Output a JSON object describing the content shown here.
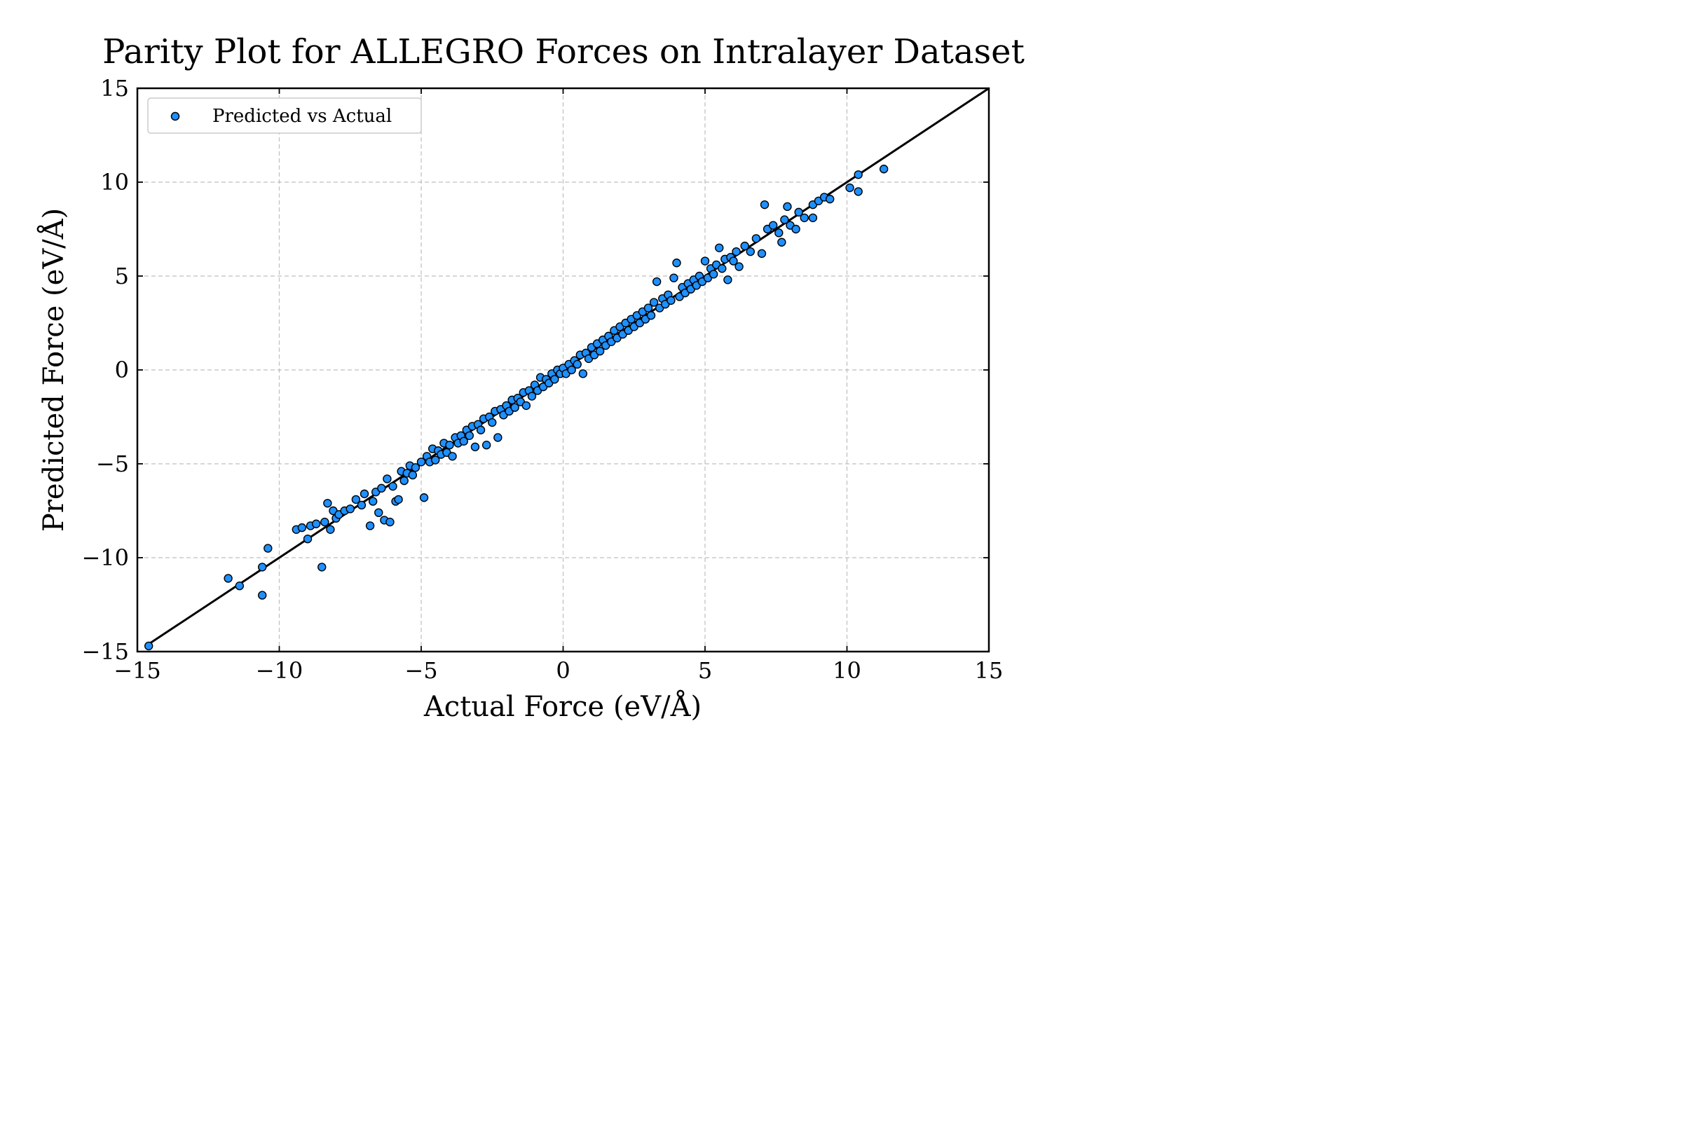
{
  "chart_data": {
    "type": "scatter",
    "title": "Parity Plot for ALLEGRO Forces on Intralayer Dataset",
    "xlabel": "Actual Force (eV/Å)",
    "ylabel": "Predicted Force (eV/Å)",
    "xlim": [
      -15,
      15
    ],
    "ylim": [
      -15,
      15
    ],
    "xticks": [
      -15,
      -10,
      -5,
      0,
      5,
      10,
      15
    ],
    "yticks": [
      -15,
      -10,
      -5,
      0,
      5,
      10,
      15
    ],
    "xtick_labels": [
      "−15",
      "−10",
      "−5",
      "0",
      "5",
      "10",
      "15"
    ],
    "ytick_labels": [
      "−15",
      "−10",
      "−5",
      "0",
      "5",
      "10",
      "15"
    ],
    "grid": true,
    "legend": {
      "placement": "upper-left",
      "entries": [
        "Predicted vs Actual"
      ]
    },
    "reference_line": {
      "x": [
        -14.6,
        15
      ],
      "y": [
        -14.6,
        15
      ],
      "color": "#000000"
    },
    "marker_color": "#1e90ff",
    "marker_edge_color": "#000000",
    "series": [
      {
        "name": "Predicted vs Actual",
        "points": [
          [
            -14.6,
            -14.7
          ],
          [
            -11.8,
            -11.1
          ],
          [
            -11.4,
            -11.5
          ],
          [
            -10.6,
            -10.5
          ],
          [
            -10.6,
            -12.0
          ],
          [
            -10.4,
            -9.5
          ],
          [
            -9.4,
            -8.5
          ],
          [
            -9.2,
            -8.4
          ],
          [
            -9.0,
            -9.0
          ],
          [
            -8.9,
            -8.3
          ],
          [
            -8.7,
            -8.2
          ],
          [
            -8.5,
            -10.5
          ],
          [
            -8.4,
            -8.1
          ],
          [
            -8.3,
            -7.1
          ],
          [
            -8.2,
            -8.5
          ],
          [
            -8.1,
            -7.5
          ],
          [
            -8.0,
            -7.9
          ],
          [
            -7.9,
            -7.7
          ],
          [
            -7.7,
            -7.5
          ],
          [
            -7.5,
            -7.4
          ],
          [
            -7.3,
            -6.9
          ],
          [
            -7.1,
            -7.2
          ],
          [
            -7.0,
            -6.6
          ],
          [
            -6.8,
            -8.3
          ],
          [
            -6.7,
            -7.0
          ],
          [
            -6.6,
            -6.5
          ],
          [
            -6.5,
            -7.6
          ],
          [
            -6.4,
            -6.3
          ],
          [
            -6.3,
            -8.0
          ],
          [
            -6.2,
            -5.8
          ],
          [
            -6.1,
            -8.1
          ],
          [
            -6.0,
            -6.2
          ],
          [
            -5.9,
            -7.0
          ],
          [
            -5.8,
            -6.9
          ],
          [
            -5.7,
            -5.4
          ],
          [
            -5.6,
            -5.9
          ],
          [
            -5.5,
            -5.5
          ],
          [
            -5.4,
            -5.1
          ],
          [
            -5.3,
            -5.6
          ],
          [
            -5.2,
            -5.2
          ],
          [
            -5.0,
            -4.9
          ],
          [
            -4.9,
            -6.8
          ],
          [
            -4.8,
            -4.6
          ],
          [
            -4.7,
            -4.9
          ],
          [
            -4.6,
            -4.2
          ],
          [
            -4.5,
            -4.8
          ],
          [
            -4.4,
            -4.3
          ],
          [
            -4.3,
            -4.5
          ],
          [
            -4.2,
            -3.9
          ],
          [
            -4.1,
            -4.4
          ],
          [
            -4.0,
            -4.0
          ],
          [
            -3.9,
            -4.6
          ],
          [
            -3.8,
            -3.6
          ],
          [
            -3.7,
            -3.9
          ],
          [
            -3.6,
            -3.5
          ],
          [
            -3.5,
            -3.8
          ],
          [
            -3.4,
            -3.2
          ],
          [
            -3.3,
            -3.5
          ],
          [
            -3.2,
            -3.0
          ],
          [
            -3.1,
            -4.1
          ],
          [
            -3.0,
            -2.9
          ],
          [
            -2.9,
            -3.2
          ],
          [
            -2.8,
            -2.6
          ],
          [
            -2.7,
            -4.0
          ],
          [
            -2.6,
            -2.5
          ],
          [
            -2.5,
            -2.8
          ],
          [
            -2.4,
            -2.2
          ],
          [
            -2.3,
            -3.6
          ],
          [
            -2.2,
            -2.1
          ],
          [
            -2.1,
            -2.4
          ],
          [
            -2.0,
            -1.9
          ],
          [
            -1.9,
            -2.2
          ],
          [
            -1.8,
            -1.6
          ],
          [
            -1.7,
            -2.0
          ],
          [
            -1.6,
            -1.5
          ],
          [
            -1.5,
            -1.7
          ],
          [
            -1.4,
            -1.2
          ],
          [
            -1.3,
            -1.9
          ],
          [
            -1.2,
            -1.1
          ],
          [
            -1.1,
            -1.4
          ],
          [
            -1.0,
            -0.8
          ],
          [
            -0.9,
            -1.1
          ],
          [
            -0.8,
            -0.4
          ],
          [
            -0.7,
            -0.9
          ],
          [
            -0.6,
            -0.5
          ],
          [
            -0.5,
            -0.7
          ],
          [
            -0.4,
            -0.2
          ],
          [
            -0.3,
            -0.5
          ],
          [
            -0.2,
            0.0
          ],
          [
            -0.1,
            -0.2
          ],
          [
            0.0,
            0.1
          ],
          [
            0.1,
            -0.2
          ],
          [
            0.2,
            0.3
          ],
          [
            0.3,
            0.0
          ],
          [
            0.4,
            0.5
          ],
          [
            0.5,
            0.3
          ],
          [
            0.6,
            0.8
          ],
          [
            0.7,
            -0.2
          ],
          [
            0.8,
            0.9
          ],
          [
            0.9,
            0.6
          ],
          [
            1.0,
            1.2
          ],
          [
            1.1,
            0.8
          ],
          [
            1.2,
            1.4
          ],
          [
            1.3,
            1.0
          ],
          [
            1.4,
            1.6
          ],
          [
            1.5,
            1.3
          ],
          [
            1.6,
            1.8
          ],
          [
            1.7,
            1.5
          ],
          [
            1.8,
            2.1
          ],
          [
            1.9,
            1.7
          ],
          [
            2.0,
            2.3
          ],
          [
            2.1,
            1.9
          ],
          [
            2.2,
            2.5
          ],
          [
            2.3,
            2.1
          ],
          [
            2.4,
            2.7
          ],
          [
            2.5,
            2.3
          ],
          [
            2.6,
            2.9
          ],
          [
            2.7,
            2.5
          ],
          [
            2.8,
            3.1
          ],
          [
            2.9,
            2.7
          ],
          [
            3.0,
            3.3
          ],
          [
            3.1,
            2.9
          ],
          [
            3.2,
            3.6
          ],
          [
            3.3,
            4.7
          ],
          [
            3.4,
            3.3
          ],
          [
            3.5,
            3.8
          ],
          [
            3.6,
            3.5
          ],
          [
            3.7,
            4.0
          ],
          [
            3.8,
            3.7
          ],
          [
            3.9,
            4.9
          ],
          [
            4.0,
            5.7
          ],
          [
            4.1,
            3.9
          ],
          [
            4.2,
            4.4
          ],
          [
            4.3,
            4.1
          ],
          [
            4.4,
            4.6
          ],
          [
            4.5,
            4.3
          ],
          [
            4.6,
            4.8
          ],
          [
            4.7,
            4.5
          ],
          [
            4.8,
            5.0
          ],
          [
            4.9,
            4.7
          ],
          [
            5.0,
            5.8
          ],
          [
            5.1,
            4.9
          ],
          [
            5.2,
            5.4
          ],
          [
            5.3,
            5.1
          ],
          [
            5.4,
            5.6
          ],
          [
            5.5,
            6.5
          ],
          [
            5.6,
            5.4
          ],
          [
            5.7,
            5.9
          ],
          [
            5.8,
            4.8
          ],
          [
            5.9,
            6.0
          ],
          [
            6.0,
            5.8
          ],
          [
            6.1,
            6.3
          ],
          [
            6.2,
            5.5
          ],
          [
            6.4,
            6.6
          ],
          [
            6.6,
            6.3
          ],
          [
            6.8,
            7.0
          ],
          [
            7.0,
            6.2
          ],
          [
            7.1,
            8.8
          ],
          [
            7.2,
            7.5
          ],
          [
            7.4,
            7.7
          ],
          [
            7.6,
            7.3
          ],
          [
            7.7,
            6.8
          ],
          [
            7.8,
            8.0
          ],
          [
            7.9,
            8.7
          ],
          [
            8.0,
            7.7
          ],
          [
            8.2,
            7.5
          ],
          [
            8.3,
            8.4
          ],
          [
            8.5,
            8.1
          ],
          [
            8.8,
            8.8
          ],
          [
            8.8,
            8.1
          ],
          [
            9.0,
            9.0
          ],
          [
            9.2,
            9.2
          ],
          [
            9.4,
            9.1
          ],
          [
            10.1,
            9.7
          ],
          [
            10.4,
            10.4
          ],
          [
            10.4,
            9.5
          ],
          [
            11.3,
            10.7
          ]
        ]
      }
    ]
  }
}
